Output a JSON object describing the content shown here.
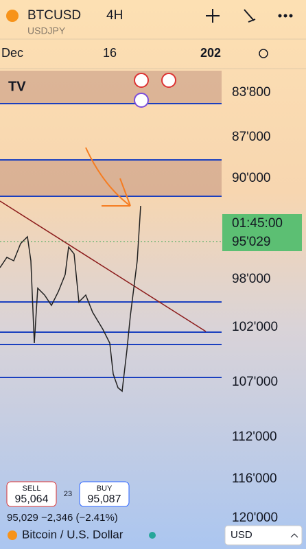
{
  "header": {
    "symbol": "BTCUSD",
    "interval": "4H",
    "ghost_symbol": "USDJPY"
  },
  "time_axis": [
    "Dec",
    "16",
    "202"
  ],
  "price_axis": [
    "83'800",
    "87'000",
    "90'000",
    "98'000",
    "102'000",
    "107'000",
    "112'000",
    "116'000",
    "120'000"
  ],
  "current_price": {
    "countdown": "01:45:00",
    "price": "95'029"
  },
  "trade": {
    "sell_label": "SELL",
    "sell_price": "95,064",
    "spread": "23",
    "buy_label": "BUY",
    "buy_price": "95,087"
  },
  "footer": {
    "change": "95,029 −2,346 (−2.41%)",
    "name": "Bitcoin / U.S. Dollar",
    "currency": "USD"
  }
}
